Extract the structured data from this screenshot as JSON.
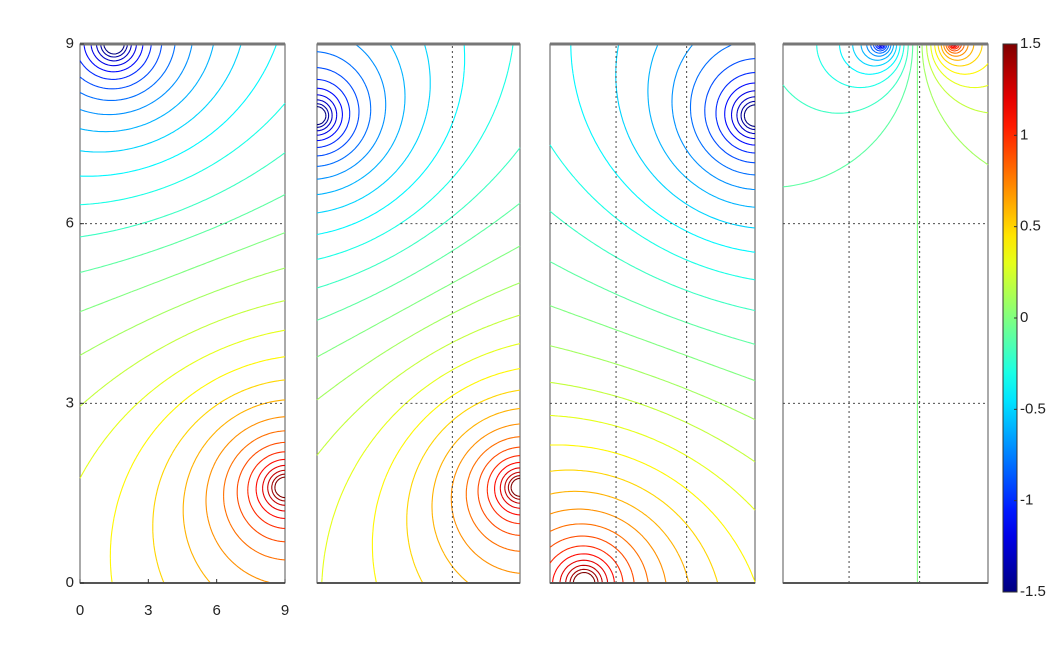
{
  "chart_data": [
    {
      "type": "contour",
      "xlim": [
        0,
        9
      ],
      "ylim": [
        0,
        9
      ],
      "xticks": [
        0,
        3,
        6,
        9
      ],
      "yticks": [
        0,
        3,
        6,
        9
      ],
      "sources": [
        {
          "x": 1.5,
          "y": 9,
          "q": -0.4
        },
        {
          "x": 9,
          "y": 1.6,
          "q": 0.4
        }
      ],
      "dashed_lines": [
        [
          0,
          3,
          9,
          3
        ],
        [
          0,
          6,
          9,
          6
        ]
      ]
    },
    {
      "type": "contour",
      "xlim": [
        0,
        9
      ],
      "ylim": [
        0,
        9
      ],
      "sources": [
        {
          "x": 0,
          "y": 7.8,
          "q": -0.4
        },
        {
          "x": 9,
          "y": 1.6,
          "q": 0.4
        }
      ],
      "dashed_lines": [
        [
          3.7,
          3,
          9,
          3
        ],
        [
          3.7,
          6,
          9,
          6
        ],
        [
          6,
          0,
          6,
          9
        ]
      ]
    },
    {
      "type": "contour",
      "xlim": [
        0,
        9
      ],
      "ylim": [
        0,
        9
      ],
      "sources": [
        {
          "x": 9,
          "y": 7.8,
          "q": -0.4
        },
        {
          "x": 1.5,
          "y": 0,
          "q": 0.4
        }
      ],
      "dashed_lines": [
        [
          0,
          3,
          9,
          3
        ],
        [
          0,
          6,
          9,
          6
        ],
        [
          2.9,
          0,
          2.9,
          9
        ],
        [
          6,
          0,
          6,
          9
        ]
      ]
    },
    {
      "type": "contour",
      "xlim": [
        0,
        9
      ],
      "ylim": [
        0,
        9
      ],
      "sources": [
        {
          "x": 4.3,
          "y": 9,
          "q": -0.4
        },
        {
          "x": 7.5,
          "y": 9,
          "q": 0.4
        }
      ],
      "dashed_lines": [
        [
          0,
          3,
          9,
          3
        ],
        [
          0,
          6,
          9,
          6
        ],
        [
          2.9,
          0,
          2.9,
          9
        ],
        [
          6,
          0,
          6,
          9
        ]
      ]
    }
  ],
  "colorbar": {
    "clim": [
      -1.5,
      1.5
    ],
    "ticks": [
      1.5,
      1,
      0.5,
      0,
      -0.5,
      -1,
      -1.5
    ],
    "levels": [
      -1.5,
      -1.4,
      -1.3,
      -1.2,
      -1.1,
      -1,
      -0.9,
      -0.8,
      -0.7,
      -0.6,
      -0.5,
      -0.4,
      -0.3,
      -0.2,
      -0.1,
      0,
      0.1,
      0.2,
      0.3,
      0.4,
      0.5,
      0.6,
      0.7,
      0.8,
      0.9,
      1,
      1.1,
      1.2,
      1.3,
      1.4,
      1.5
    ]
  }
}
